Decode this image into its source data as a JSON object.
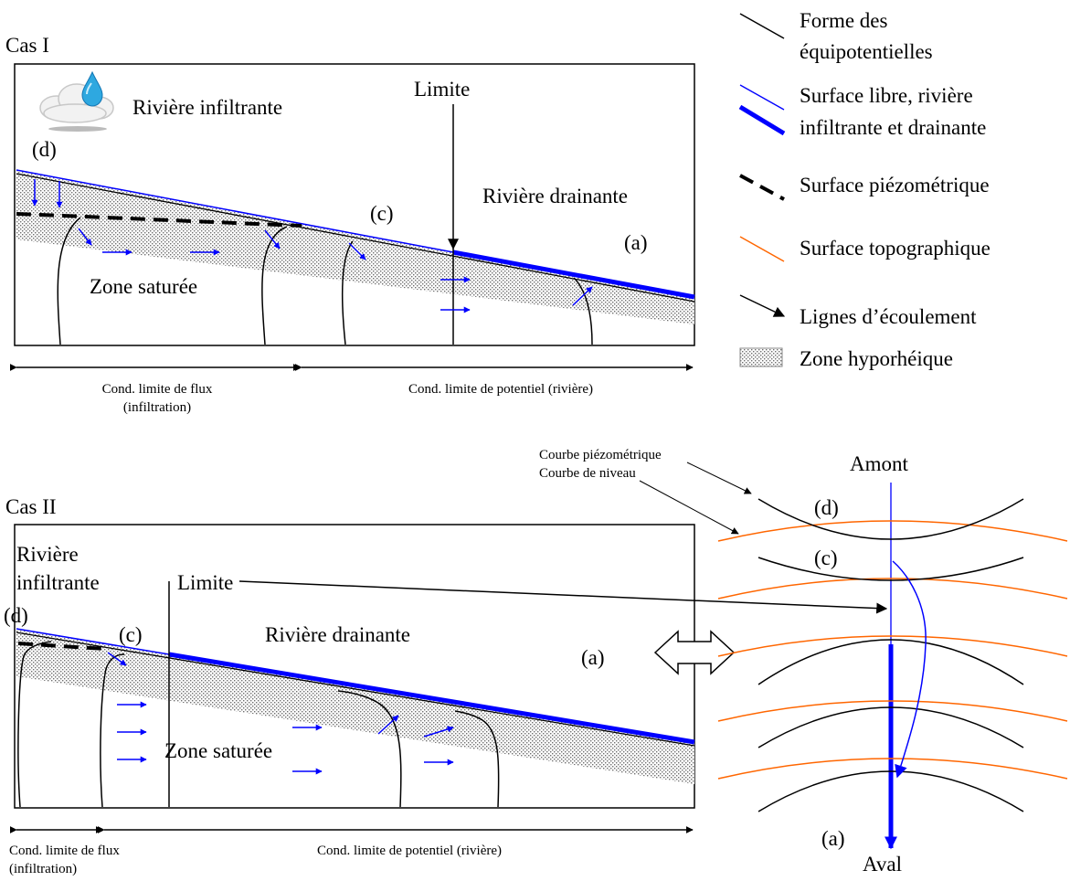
{
  "case1": {
    "title": "Cas I",
    "infiltrating_label": "Rivière infiltrante",
    "limit_label": "Limite",
    "draining_label": "Rivière drainante",
    "saturated_label": "Zone saturée",
    "marker_a": "(a)",
    "marker_c": "(c)",
    "marker_d": "(d)",
    "flux_condition_line1": "Cond. limite de flux",
    "flux_condition_line2": "(infiltration)",
    "potential_condition": "Cond. limite de potentiel (rivière)"
  },
  "case2": {
    "title": "Cas II",
    "infiltrating_line1": "Rivière",
    "infiltrating_line2": "infiltrante",
    "limit_label": "Limite",
    "draining_label": "Rivière drainante",
    "saturated_label": "Zone saturée",
    "marker_a": "(a)",
    "marker_c": "(c)",
    "marker_d": "(d)",
    "flux_condition_line1": "Cond. limite de flux",
    "flux_condition_line2": "(infiltration)",
    "potential_condition": "Cond. limite de potentiel (rivière)"
  },
  "legend": {
    "equipotential_line1": "Forme des",
    "equipotential_line2": "équipotentielles",
    "free_surface_line1": "Surface libre, rivière",
    "free_surface_line2": "infiltrante et drainante",
    "piezometric": "Surface piézométrique",
    "topographic": "Surface topographique",
    "flow_lines": "Lignes d’écoulement",
    "hyporheic": "Zone hyporhéique"
  },
  "planview": {
    "upstream": "Amont",
    "downstream": "Aval",
    "piezometric_curve": "Courbe piézométrique",
    "contour_line": "Courbe de niveau",
    "marker_d": "(d)",
    "marker_c": "(c)",
    "marker_a": "(a)"
  },
  "colors": {
    "river": "#0000ff",
    "topography": "#ff6600",
    "flow_arrow": "#0000ff",
    "hyporheic_dots": "#777777"
  }
}
